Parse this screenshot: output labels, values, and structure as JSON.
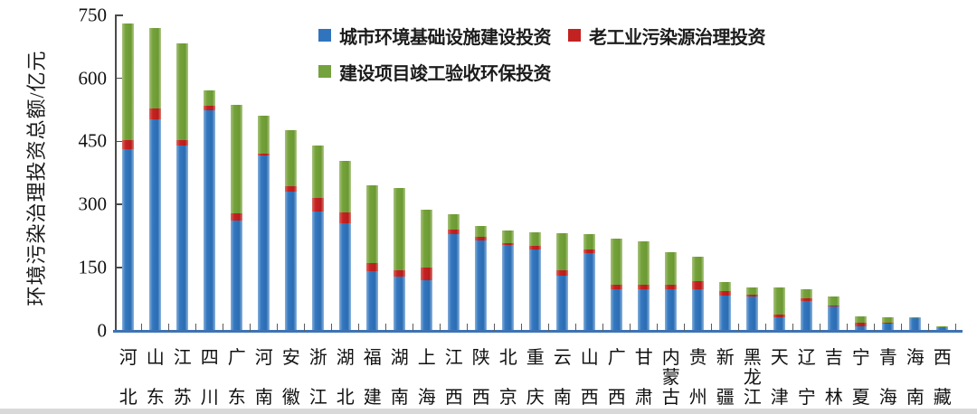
{
  "chart_data": {
    "type": "bar",
    "stacked": true,
    "title": "",
    "xlabel": "",
    "ylabel": "环境污染治理投资总额/亿元",
    "ylim": [
      0,
      750
    ],
    "y_ticks": [
      0,
      150,
      300,
      450,
      600,
      750
    ],
    "grid": false,
    "legend_position": "top-center",
    "axis_color": "#4a4a4a",
    "baseline_color": "#3e73b5",
    "categories": [
      "河北",
      "山东",
      "江苏",
      "四川",
      "广东",
      "河南",
      "安徽",
      "浙江",
      "湖北",
      "福建",
      "湖南",
      "上海",
      "江西",
      "陕西",
      "北京",
      "重庆",
      "云南",
      "山西",
      "广西",
      "甘肃",
      "内蒙古",
      "贵州",
      "新疆",
      "黑龙江",
      "天津",
      "辽宁",
      "吉林",
      "宁夏",
      "青海",
      "海南",
      "西藏"
    ],
    "series": [
      {
        "name": "城市环境基础设施建设投资",
        "color": "#2f74bd",
        "values": [
          431,
          503,
          440,
          524,
          262,
          416,
          330,
          284,
          255,
          142,
          129,
          120,
          230,
          215,
          203,
          192,
          131,
          183,
          97,
          98,
          97,
          98,
          82,
          80,
          31,
          70,
          56,
          9,
          17,
          28,
          7
        ]
      },
      {
        "name": "老工业污染源治理投资",
        "color": "#c32222",
        "values": [
          21,
          25,
          13,
          10,
          16,
          5,
          14,
          32,
          25,
          19,
          15,
          29,
          9,
          8,
          5,
          9,
          12,
          9,
          11,
          11,
          12,
          20,
          11,
          5,
          6,
          6,
          4,
          9,
          2,
          1,
          1
        ]
      },
      {
        "name": "建设项目竣工验收环保投资",
        "color": "#74a23c",
        "values": [
          279,
          192,
          230,
          38,
          259,
          91,
          133,
          124,
          124,
          184,
          194,
          138,
          38,
          25,
          29,
          32,
          88,
          38,
          111,
          104,
          78,
          58,
          23,
          18,
          65,
          21,
          21,
          16,
          13,
          2,
          1
        ]
      }
    ]
  }
}
